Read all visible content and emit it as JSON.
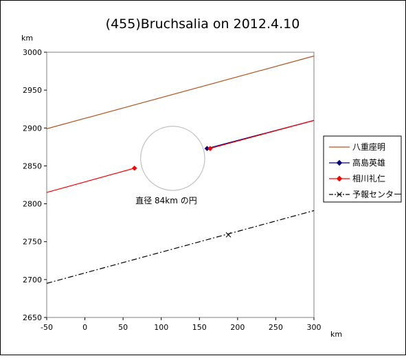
{
  "chart_data": {
    "type": "line",
    "title": "(455)Bruchsalia on 2012.4.10",
    "xlabel": "km",
    "ylabel": "km",
    "xlim": [
      -50,
      300
    ],
    "ylim": [
      2650,
      3000
    ],
    "xticks": [
      -50,
      0,
      50,
      100,
      150,
      200,
      250,
      300
    ],
    "yticks": [
      2650,
      2700,
      2750,
      2800,
      2850,
      2900,
      2950,
      3000
    ],
    "grid": false,
    "legend_position": "right",
    "series": [
      {
        "name": "八重座明",
        "color": "#b5541f",
        "style": "solid",
        "marker": "none",
        "x": [
          -50,
          300
        ],
        "y": [
          2899,
          2995
        ]
      },
      {
        "name": "高島英雄",
        "color": "#000080",
        "style": "solid",
        "marker": "diamond",
        "x": [
          160,
          300
        ],
        "y": [
          2873,
          2910
        ],
        "endpoint": {
          "x": 160,
          "y": 2873
        }
      },
      {
        "name": "相川礼仁",
        "color": "#ff0000",
        "style": "solid",
        "marker": "diamond",
        "x": [
          -50,
          65
        ],
        "y": [
          2815,
          2847
        ],
        "extra_segments": [
          {
            "x": [
              164,
              300
            ],
            "y": [
              2873,
              2910
            ]
          }
        ],
        "endpoint": {
          "x": 65,
          "y": 2847
        },
        "endpoint2": {
          "x": 164,
          "y": 2873
        }
      },
      {
        "name": "予報センター",
        "color": "#000000",
        "style": "dashdot",
        "marker": "x",
        "x": [
          -50,
          300
        ],
        "y": [
          2695,
          2791
        ],
        "marker_point": {
          "x": 188,
          "y": 2759
        }
      }
    ],
    "circle": {
      "cx": 115,
      "cy": 2860,
      "diameter_km": 84,
      "color": "#c0c0c0"
    },
    "annotation": "直径 84km の円"
  }
}
